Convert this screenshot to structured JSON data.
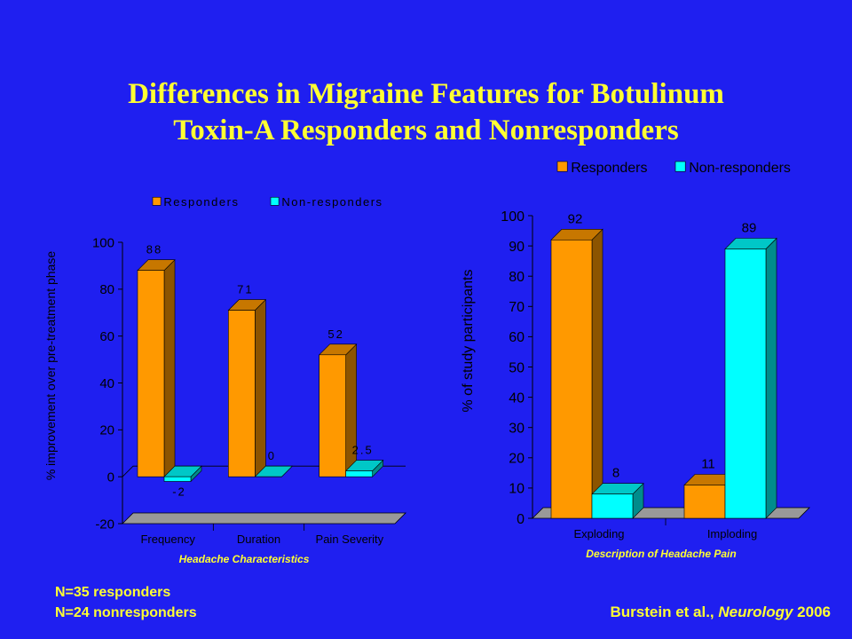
{
  "title_line1": "Differences in Migraine Features for Botulinum",
  "title_line2": "Toxin-A Responders and Nonresponders",
  "notes": [
    "N=35 responders",
    "N=24 nonresponders"
  ],
  "citation": {
    "authors": "Burstein et al., ",
    "journal": "Neurology",
    "year": " 2006"
  },
  "colors": {
    "background": "#1f1ff0",
    "text": "#ffff33",
    "responders": "#ff9900",
    "non_responders": "#00ffff",
    "floor": "#999999"
  },
  "chart_data": [
    {
      "type": "bar",
      "categories": [
        "Frequency",
        "Duration",
        "Pain Severity"
      ],
      "series": [
        {
          "name": "Responders",
          "values": [
            88,
            71,
            52
          ],
          "labels": [
            "88",
            "71",
            "52"
          ]
        },
        {
          "name": "Non-responders",
          "values": [
            -2,
            0,
            2.5
          ],
          "labels": [
            "-2",
            "0",
            "2.5"
          ]
        }
      ],
      "xlabel": "Headache Characteristics",
      "ylabel": "% improvement over pre-treatment phase",
      "ylim": [
        -20,
        100
      ],
      "yticks": [
        -20,
        0,
        20,
        40,
        60,
        80,
        100
      ],
      "legend": "top",
      "grid": false,
      "style": "3d"
    },
    {
      "type": "bar",
      "categories": [
        "Exploding",
        "Imploding"
      ],
      "series": [
        {
          "name": "Responders",
          "values": [
            92,
            11
          ],
          "labels": [
            "92",
            "11"
          ]
        },
        {
          "name": "Non-responders",
          "values": [
            8,
            89
          ],
          "labels": [
            "8",
            "89"
          ]
        }
      ],
      "xlabel": "Description of Headache Pain",
      "ylabel": "% of study participants",
      "ylim": [
        0,
        100
      ],
      "yticks": [
        0,
        10,
        20,
        30,
        40,
        50,
        60,
        70,
        80,
        90,
        100
      ],
      "legend": "top-right",
      "grid": false,
      "style": "3d"
    }
  ]
}
